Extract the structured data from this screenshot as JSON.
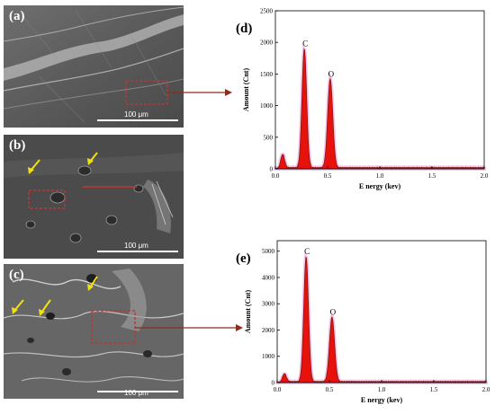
{
  "panels": {
    "a": {
      "label": "(a)",
      "scale": "100 μm"
    },
    "b": {
      "label": "(b)",
      "scale": "100 μm"
    },
    "c": {
      "label": "(c)",
      "scale": "100 μm"
    }
  },
  "colors": {
    "arrow": "#f2e20a",
    "box": "#b23a3a",
    "connector": "#8b2d1c",
    "spectrum_fill": "#e8120c",
    "spectrum_halo": "#f4b6e6",
    "baseline": "#7a1e12"
  },
  "chart_data": [
    {
      "panel": "(d)",
      "type": "area",
      "ylabel": "Amount (Cnt)",
      "xlabel": "E nergy (kev)",
      "xlim": [
        0.0,
        2.0
      ],
      "ylim": [
        0,
        2500
      ],
      "xticks": [
        "0.0",
        "0.5",
        "1.0",
        "1.5",
        "2.0"
      ],
      "yticks": [
        "0",
        "500",
        "1000",
        "1500",
        "2000",
        "2500"
      ],
      "peaks": [
        {
          "label": "",
          "x": 0.07,
          "y": 210,
          "width": 0.018
        },
        {
          "label": "C",
          "x": 0.277,
          "y": 1880,
          "width": 0.022
        },
        {
          "label": "O",
          "x": 0.525,
          "y": 1400,
          "width": 0.024
        }
      ],
      "baseline": 20
    },
    {
      "panel": "(e)",
      "type": "area",
      "ylabel": "Amount (Cnt)",
      "xlabel": "E nergy (kev)",
      "xlim": [
        0.0,
        2.0
      ],
      "ylim": [
        0,
        5400
      ],
      "xticks": [
        "0.0",
        "0.5",
        "1.0",
        "1.5",
        "2.0"
      ],
      "yticks": [
        "0",
        "1000",
        "2000",
        "3000",
        "4000",
        "5000"
      ],
      "peaks": [
        {
          "label": "",
          "x": 0.07,
          "y": 300,
          "width": 0.018
        },
        {
          "label": "C",
          "x": 0.277,
          "y": 4750,
          "width": 0.022
        },
        {
          "label": "O",
          "x": 0.525,
          "y": 2450,
          "width": 0.024
        }
      ],
      "baseline": 40
    }
  ]
}
